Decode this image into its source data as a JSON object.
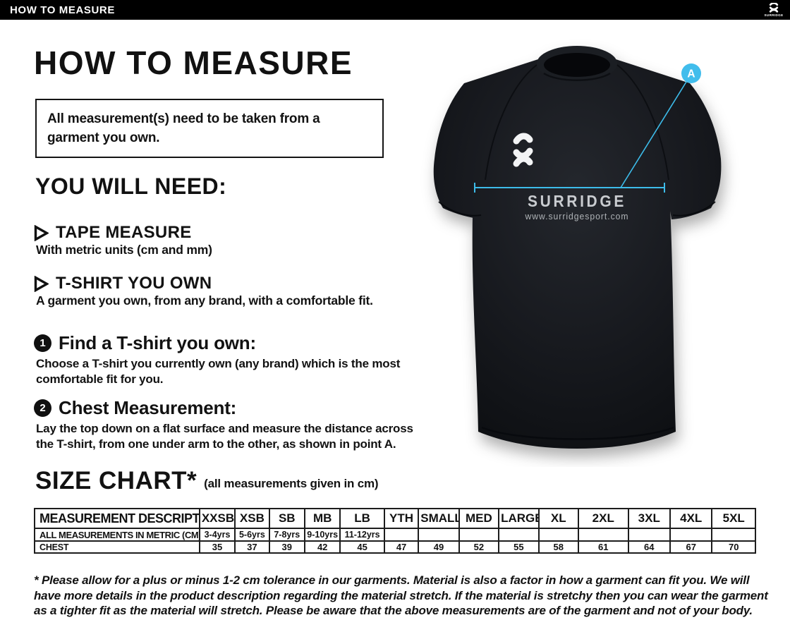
{
  "header": {
    "title": "HOW TO MEASURE",
    "logo_brand": "SURRIDGE"
  },
  "intro": {
    "heading": "HOW TO MEASURE",
    "notice": "All measurement(s) need to be taken from a garment you own."
  },
  "you_will_need": {
    "heading": "YOU WILL NEED:",
    "items": [
      {
        "title": "TAPE MEASURE",
        "description": "With metric units (cm and mm)",
        "icon": "play-triangle-icon"
      },
      {
        "title": "T-SHIRT YOU OWN",
        "description": "A garment you own, from any brand, with a comfortable fit.",
        "icon": "play-triangle-icon"
      }
    ]
  },
  "steps": [
    {
      "number": "1",
      "title": "Find a T-shirt you own:",
      "description": "Choose a T-shirt you currently own (any brand) which is the most comfortable fit for you."
    },
    {
      "number": "2",
      "title": "Chest Measurement:",
      "description": "Lay the top down on a flat surface and measure the distance across the T-shirt, from one under arm to the other, as shown in point A."
    }
  ],
  "size_chart": {
    "heading": "SIZE CHART*",
    "note": "(all measurements given in cm)",
    "table": {
      "columns": [
        "MEASUREMENT DESCRIPTION",
        "XXSB",
        "XSB",
        "SB",
        "MB",
        "LB",
        "YTH",
        "SMALL",
        "MED",
        "LARGE",
        "XL",
        "2XL",
        "3XL",
        "4XL",
        "5XL"
      ],
      "rows": [
        {
          "label": "ALL MEASUREMENTS IN METRIC (CM)",
          "values": [
            "3-4yrs",
            "5-6yrs",
            "7-8yrs",
            "9-10yrs",
            "11-12yrs",
            "",
            "",
            "",
            "",
            "",
            "",
            "",
            "",
            ""
          ]
        },
        {
          "label": "CHEST",
          "values": [
            "35",
            "37",
            "39",
            "42",
            "45",
            "47",
            "49",
            "52",
            "55",
            "58",
            "61",
            "64",
            "67",
            "70"
          ]
        }
      ]
    },
    "footnote": "* Please allow for a plus or minus 1-2 cm tolerance in our garments. Material is also a factor in how a garment can fit you. We will have more details in the product description regarding the material stretch.  If the material is stretchy then you can wear the garment as a tighter fit as the material will stretch.  Please be aware that the above measurements are of the garment and not of your body."
  },
  "shirt": {
    "chest_logo_text": "SURRIDGE",
    "chest_url": "www.surridgesport.com",
    "marker_label": "A",
    "accent_color": "#3dbcea",
    "shirt_color": "#15171b"
  }
}
